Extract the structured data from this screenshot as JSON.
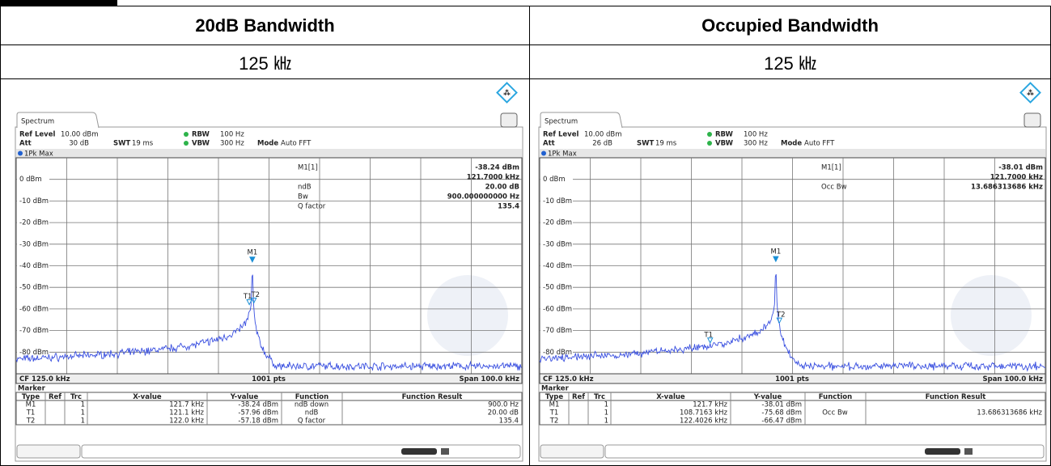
{
  "table": {
    "columns": [
      "20dB Bandwidth",
      "Occupied Bandwidth"
    ],
    "values": [
      "125 ㎑",
      "125 ㎑"
    ]
  },
  "labels": {
    "tab": "Spectrum",
    "ref_level": "Ref Level",
    "att": "Att",
    "swt": "SWT",
    "rbw": "RBW",
    "vbw": "VBW",
    "mode": "Mode",
    "trace": "1Pk Max",
    "marker": "Marker",
    "marker_columns": [
      "Type",
      "Ref",
      "Trc",
      "X-value",
      "Y-value",
      "Function",
      "Function Result"
    ]
  },
  "screens": [
    {
      "ref_level": "10.00 dBm",
      "att": "30 dB",
      "swt": "19 ms",
      "rbw": "100 Hz",
      "vbw": "300 Hz",
      "mode": "Auto FFT",
      "y_labels": [
        "0 dBm",
        "-10 dBm",
        "-20 dBm",
        "-30 dBm",
        "-40 dBm",
        "-50 dBm",
        "-60 dBm",
        "-70 dBm",
        "-80 dBm"
      ],
      "marker_info": [
        {
          "label": "M1[1]",
          "value": "-38.24 dBm"
        },
        {
          "value": "121.7000 kHz"
        },
        {
          "label": "ndB",
          "value": "20.00 dB"
        },
        {
          "label": "Bw",
          "value": "900.000000000 Hz"
        },
        {
          "label": "Q factor",
          "value": "135.4"
        }
      ],
      "cf": "CF 125.0 kHz",
      "points": "1001 pts",
      "span": "Span 100.0 kHz",
      "markers": [
        {
          "type": "M1",
          "trc": "1",
          "x": "121.7 kHz",
          "y": "-38.24 dBm",
          "function": "ndB down",
          "result": "900.0 Hz"
        },
        {
          "type": "T1",
          "trc": "1",
          "x": "121.1 kHz",
          "y": "-57.96 dBm",
          "function": "ndB",
          "result": "20.00 dB"
        },
        {
          "type": "T2",
          "trc": "1",
          "x": "122.0 kHz",
          "y": "-57.18 dBm",
          "function": "Q factor",
          "result": "135.4"
        }
      ]
    },
    {
      "ref_level": "10.00 dBm",
      "att": "26 dB",
      "swt": "19 ms",
      "rbw": "100 Hz",
      "vbw": "300 Hz",
      "mode": "Auto FFT",
      "y_labels": [
        "0 dBm",
        "-10 dBm",
        "-20 dBm",
        "-30 dBm",
        "-40 dBm",
        "-50 dBm",
        "-60 dBm",
        "-70 dBm",
        "-80 dBm"
      ],
      "marker_info": [
        {
          "label": "M1[1]",
          "value": "-38.01 dBm"
        },
        {
          "value": "121.7000 kHz"
        },
        {
          "label": "Occ Bw",
          "value": "13.686313686 kHz"
        }
      ],
      "cf": "CF 125.0 kHz",
      "points": "1001 pts",
      "span": "Span 100.0 kHz",
      "markers": [
        {
          "type": "M1",
          "trc": "1",
          "x": "121.7 kHz",
          "y": "-38.01 dBm"
        },
        {
          "type": "T1",
          "trc": "1",
          "x": "108.7163 kHz",
          "y": "-75.68 dBm",
          "function": "Occ Bw",
          "result": "13.686313686 kHz"
        },
        {
          "type": "T2",
          "trc": "1",
          "x": "122.4026 kHz",
          "y": "-66.47 dBm"
        }
      ]
    }
  ]
}
